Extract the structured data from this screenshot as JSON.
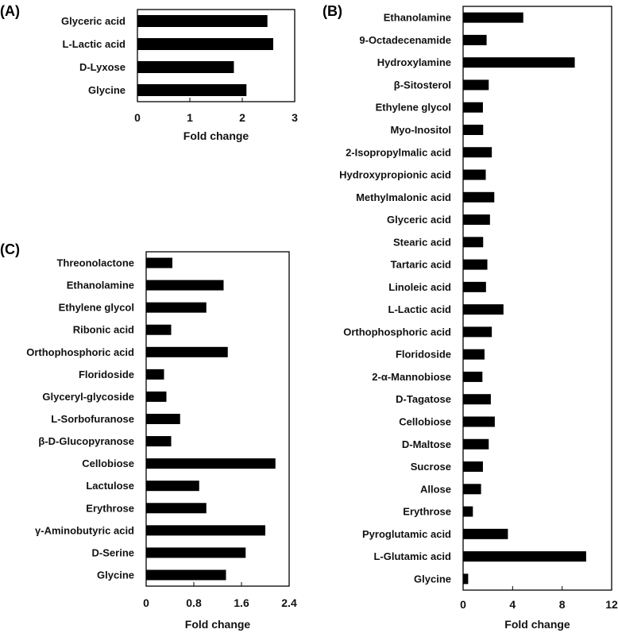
{
  "chart_data": [
    {
      "type": "bar",
      "orientation": "horizontal",
      "panel_label": "(A)",
      "categories": [
        "Glyceric acid",
        "L-Lactic acid",
        "D-Lyxose",
        "Glycine"
      ],
      "values": [
        2.48,
        2.59,
        1.84,
        2.08
      ],
      "xlabel": "Fold change",
      "xlim": [
        0,
        3
      ],
      "xticks": [
        "0",
        "1",
        "2",
        "3"
      ],
      "bar_color": "#000000",
      "grid": false
    },
    {
      "type": "bar",
      "orientation": "horizontal",
      "panel_label": "(B)",
      "categories": [
        "Ethanolamine",
        "9-Octadecenamide",
        "Hydroxylamine",
        "β-Sitosterol",
        "Ethylene glycol",
        "Myo-Inositol",
        "2-Isopropylmalic acid",
        "Hydroxypropionic acid",
        "Methylmalonic acid",
        "Glyceric acid",
        "Stearic acid",
        "Tartaric acid",
        "Linoleic acid",
        "L-Lactic acid",
        "Orthophosphoric acid",
        "Floridoside",
        "2-α-Mannobiose",
        "D-Tagatose",
        "Cellobiose",
        "D-Maltose",
        "Sucrose",
        "Allose",
        "Erythrose",
        "Pyroglutamic acid",
        "L-Glutamic acid",
        "Glycine"
      ],
      "values": [
        4.86,
        1.9,
        9.02,
        2.07,
        1.6,
        1.62,
        2.32,
        1.83,
        2.52,
        2.17,
        1.62,
        1.96,
        1.85,
        3.26,
        2.32,
        1.73,
        1.56,
        2.24,
        2.56,
        2.07,
        1.6,
        1.45,
        0.79,
        3.62,
        9.94,
        0.41
      ],
      "xlabel": "Fold change",
      "xlim": [
        0,
        12
      ],
      "xticks": [
        "0",
        "4",
        "8",
        "12"
      ],
      "bar_color": "#000000",
      "grid": false
    },
    {
      "type": "bar",
      "orientation": "horizontal",
      "panel_label": "(C)",
      "categories": [
        "Threonolactone",
        "Ethanolamine",
        "Ethylene glycol",
        "Ribonic acid",
        "Orthophosphoric acid",
        "Floridoside",
        "Glyceryl-glycoside",
        "L-Sorbofuranose",
        "β-D-Glucopyranose",
        "Cellobiose",
        "Lactulose",
        "Erythrose",
        "γ-Aminobutyric acid",
        "D-Serine",
        "Glycine"
      ],
      "values": [
        0.44,
        1.3,
        1.01,
        0.42,
        1.37,
        0.3,
        0.34,
        0.57,
        0.42,
        2.17,
        0.89,
        1.01,
        2.0,
        1.67,
        1.34
      ],
      "xlabel": "Fold change",
      "xlim": [
        0,
        2.4
      ],
      "xticks": [
        "0",
        "0.8",
        "1.6",
        "2.4"
      ],
      "bar_color": "#000000",
      "grid": false
    }
  ]
}
